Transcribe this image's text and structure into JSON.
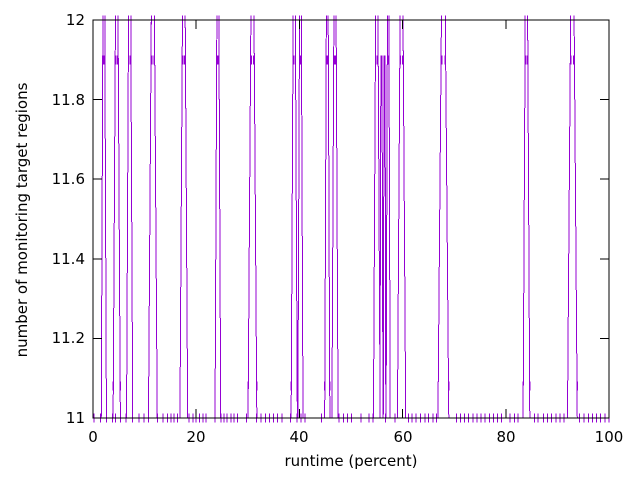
{
  "chart_data": {
    "type": "line",
    "title": "",
    "xlabel": "runtime (percent)",
    "ylabel": "number of monitoring target regions",
    "xlim": [
      0,
      100
    ],
    "ylim": [
      11,
      12
    ],
    "xtick_labels": [
      "0",
      "20",
      "40",
      "60",
      "80",
      "100"
    ],
    "xtick_values": [
      0,
      20,
      40,
      60,
      80,
      100
    ],
    "ytick_labels": [
      "11",
      "11.2",
      "11.4",
      "11.6",
      "11.8",
      "12"
    ],
    "ytick_values": [
      11,
      11.2,
      11.4,
      11.6,
      11.8,
      12
    ],
    "grid": false,
    "legend": "none",
    "line_color": "#9400d3",
    "axis_color": "#000000",
    "marker": "vertical-dash",
    "series": {
      "name": "monitoring target regions",
      "baseline_y": 11,
      "baseline_points": [
        0.2,
        1.5,
        2.6,
        3.8,
        4.4,
        5.3,
        6.4,
        7.7,
        8.9,
        9.9,
        10.8,
        12.5,
        13.6,
        14.4,
        15.1,
        15.7,
        16.4,
        18.6,
        19.4,
        20.0,
        20.6,
        21.3,
        21.9,
        23.6,
        24.8,
        25.4,
        26.0,
        26.7,
        27.3,
        28.0,
        29.7,
        31.7,
        32.6,
        33.4,
        34.2,
        35.0,
        35.8,
        36.6,
        38.3,
        39.5,
        40.3,
        41.1,
        44.3,
        47.7,
        48.5,
        49.3,
        50.1,
        51.9,
        53.5,
        54.3,
        56.7,
        58.5,
        61.1,
        61.8,
        62.6,
        63.5,
        64.3,
        65.0,
        65.9,
        66.6,
        70.4,
        71.2,
        72.0,
        72.8,
        73.6,
        74.4,
        75.2,
        76.0,
        76.8,
        77.6,
        78.4,
        79.2,
        80.8,
        81.7,
        82.4,
        85.6,
        86.2,
        87.3,
        88.1,
        88.9,
        89.7,
        90.5,
        91.3,
        94.3,
        95.2,
        96.0,
        96.8,
        97.6,
        98.4,
        99.2,
        100.0
      ],
      "pulses_format": "[x_percent, peak_value, base_width_percent]",
      "pulses": [
        [
          2.1,
          12,
          1.0
        ],
        [
          4.6,
          12,
          1.4
        ],
        [
          7.1,
          12,
          1.2
        ],
        [
          11.6,
          12,
          1.7
        ],
        [
          17.6,
          12,
          1.5
        ],
        [
          24.2,
          12,
          1.1
        ],
        [
          30.9,
          12,
          1.7
        ],
        [
          39.0,
          12,
          1.2
        ],
        [
          40.2,
          12,
          1.0
        ],
        [
          45.4,
          12,
          1.0
        ],
        [
          46.9,
          12,
          1.2
        ],
        [
          55.0,
          12,
          1.3
        ],
        [
          55.9,
          11.9,
          0.6
        ],
        [
          56.5,
          11.9,
          0.5
        ],
        [
          57.2,
          12,
          0.8
        ],
        [
          59.8,
          12,
          1.6
        ],
        [
          67.9,
          12,
          2.1
        ],
        [
          84.0,
          12,
          1.3
        ],
        [
          92.9,
          12,
          1.9
        ]
      ]
    }
  }
}
